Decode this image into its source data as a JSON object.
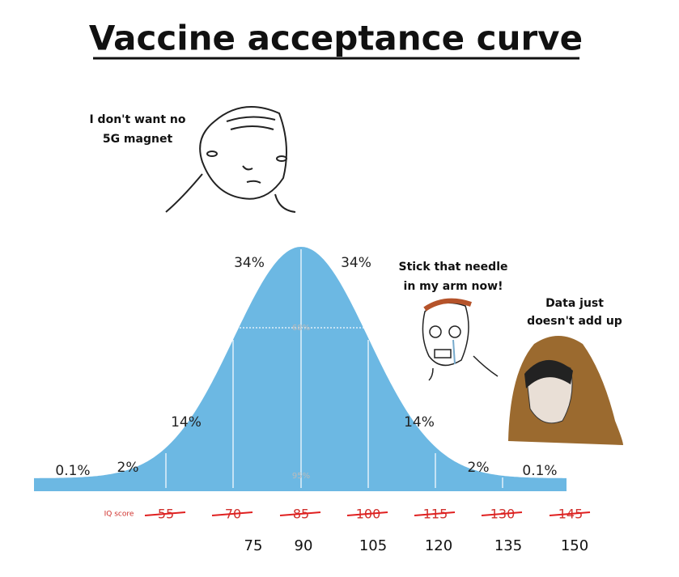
{
  "title": "Vaccine acceptance curve",
  "speech": [
    {
      "lines": [
        "I don't want no",
        "5G magnet"
      ]
    },
    {
      "lines": [
        "Stick that needle",
        "in my arm now!"
      ]
    },
    {
      "lines": [
        "Data just",
        "doesn't add up"
      ]
    }
  ],
  "curve": {
    "segment_labels": [
      "0.1%",
      "2%",
      "14%",
      "34%",
      "34%",
      "14%",
      "2%",
      "0.1%"
    ],
    "inner_labels": [
      "68%",
      "95%"
    ],
    "axis_label": "IQ score",
    "old_scores": [
      "55",
      "70",
      "85",
      "100",
      "115",
      "130",
      "145"
    ],
    "new_scores": [
      "75",
      "90",
      "105",
      "120",
      "135",
      "150"
    ]
  }
}
